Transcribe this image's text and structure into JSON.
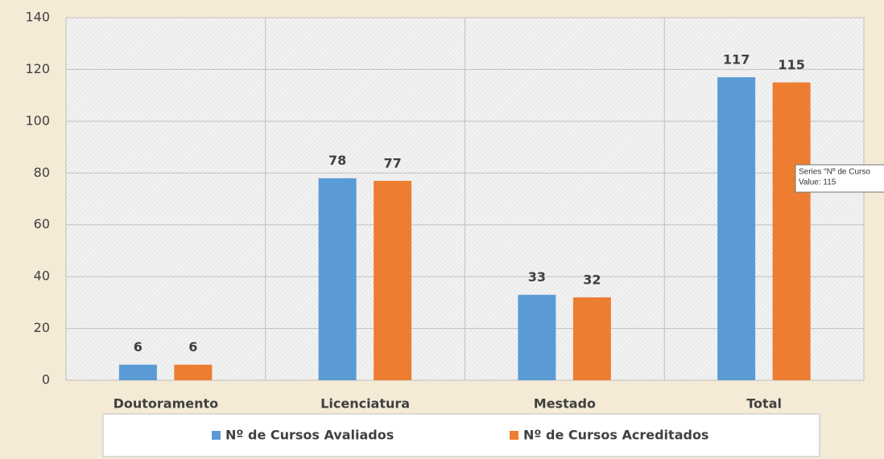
{
  "chart_data": {
    "type": "bar",
    "categories": [
      "Doutoramento",
      "Licenciatura",
      "Mestado",
      "Total"
    ],
    "series": [
      {
        "name": "Nº de Cursos Avaliados",
        "color": "#5b9bd5",
        "values": [
          6,
          78,
          33,
          117
        ]
      },
      {
        "name": "Nº de Cursos Acreditados",
        "color": "#ed7d31",
        "values": [
          6,
          77,
          32,
          115
        ]
      }
    ],
    "ylim": [
      0,
      140
    ],
    "yticks": [
      0,
      20,
      40,
      60,
      80,
      100,
      120,
      140
    ],
    "grid": true,
    "legend": "bottom",
    "tooltip": [
      "Series \"Nº de Curso",
      "Value: 115"
    ]
  }
}
